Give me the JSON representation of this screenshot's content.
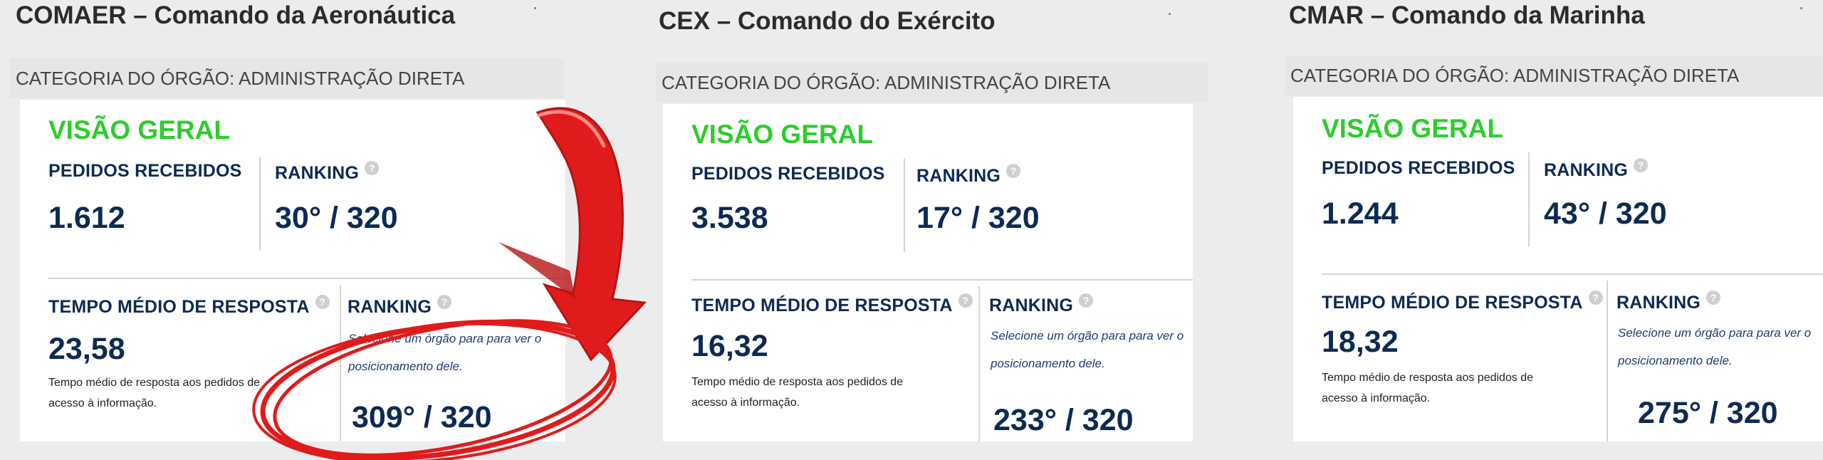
{
  "panels": [
    {
      "title": "COMAER – Comando da Aeronáutica",
      "category": "CATEGORIA DO ÓRGÃO: ADMINISTRAÇÃO DIRETA",
      "card_title": "VISÃO GERAL",
      "requests_label": "PEDIDOS RECEBIDOS",
      "requests_value": "1.612",
      "ranking_label": "RANKING",
      "requests_ranking": "30° / 320",
      "time_label": "TEMPO MÉDIO DE RESPOSTA",
      "time_value": "23,58",
      "time_desc": "Tempo médio de resposta aos pedidos de acesso à informação.",
      "time_ranking_label": "RANKING",
      "hint": "Selecione um órgão para para ver o posicionamento dele.",
      "time_ranking": "309° / 320"
    },
    {
      "title": "CEX – Comando do Exército",
      "category": "CATEGORIA DO ÓRGÃO: ADMINISTRAÇÃO DIRETA",
      "card_title": "VISÃO GERAL",
      "requests_label": "PEDIDOS RECEBIDOS",
      "requests_value": "3.538",
      "ranking_label": "RANKING",
      "requests_ranking": "17° / 320",
      "time_label": "TEMPO MÉDIO DE RESPOSTA",
      "time_value": "16,32",
      "time_desc": "Tempo médio de resposta aos pedidos de acesso à informação.",
      "time_ranking_label": "RANKING",
      "hint": "Selecione um órgão para para ver o posicionamento dele.",
      "time_ranking": "233° / 320"
    },
    {
      "title": "CMAR – Comando da Marinha",
      "category": "CATEGORIA DO ÓRGÃO: ADMINISTRAÇÃO DIRETA",
      "card_title": "VISÃO GERAL",
      "requests_label": "PEDIDOS RECEBIDOS",
      "requests_value": "1.244",
      "ranking_label": "RANKING",
      "requests_ranking": "43° / 320",
      "time_label": "TEMPO MÉDIO DE RESPOSTA",
      "time_value": "18,32",
      "time_desc": "Tempo médio de resposta aos pedidos de acesso à informação.",
      "time_ranking_label": "RANKING",
      "hint": "Selecione um órgão para para ver o posicionamento dele.",
      "time_ranking": "275° / 320"
    }
  ],
  "help_icon": "question-icon",
  "colors": {
    "accent_green": "#2ecc2e",
    "navy": "#0e2a52",
    "annotation_red": "#e01b1b"
  }
}
